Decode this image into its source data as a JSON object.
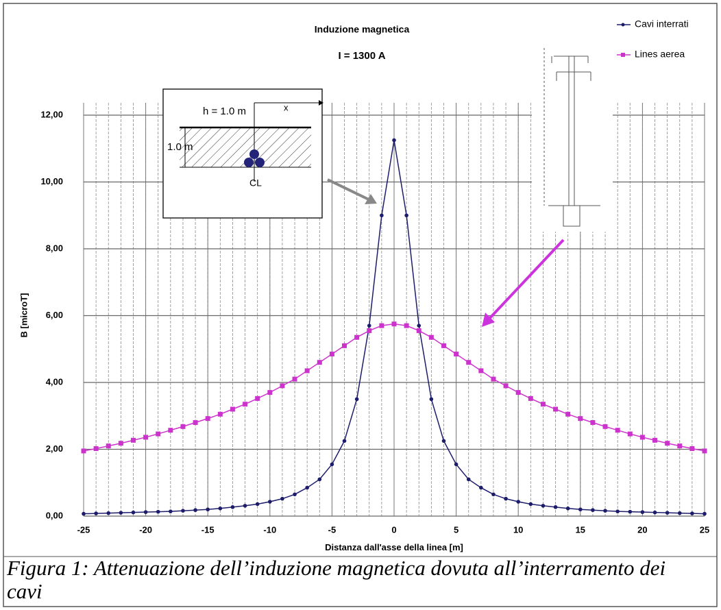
{
  "chart_data": {
    "type": "line",
    "title": "Induzione magnetica",
    "subtitle": "I = 1300 A",
    "ylabel": "B [microT]",
    "xlabel": "Distanza dall'asse della linea [m]",
    "x": [
      -25,
      -24,
      -23,
      -22,
      -21,
      -20,
      -19,
      -18,
      -17,
      -16,
      -15,
      -14,
      -13,
      -12,
      -11,
      -10,
      -9,
      -8,
      -7,
      -6,
      -5,
      -4,
      -3,
      -2,
      -1,
      0,
      1,
      2,
      3,
      4,
      5,
      6,
      7,
      8,
      9,
      10,
      11,
      12,
      13,
      14,
      15,
      16,
      17,
      18,
      19,
      20,
      21,
      22,
      23,
      24,
      25
    ],
    "series": [
      {
        "name": "Cavi interrati",
        "color": "#1c1c6b",
        "marker": "circle",
        "values": [
          0.07,
          0.08,
          0.09,
          0.1,
          0.11,
          0.12,
          0.13,
          0.14,
          0.16,
          0.18,
          0.2,
          0.23,
          0.27,
          0.31,
          0.36,
          0.43,
          0.52,
          0.65,
          0.85,
          1.1,
          1.55,
          2.25,
          3.5,
          5.7,
          9.0,
          11.25,
          9.0,
          5.7,
          3.5,
          2.25,
          1.55,
          1.1,
          0.85,
          0.65,
          0.52,
          0.43,
          0.36,
          0.31,
          0.27,
          0.23,
          0.2,
          0.18,
          0.16,
          0.14,
          0.13,
          0.12,
          0.11,
          0.1,
          0.09,
          0.08,
          0.07
        ]
      },
      {
        "name": "Lines aerea",
        "color": "#cc33cc",
        "marker": "square",
        "values": [
          1.95,
          2.02,
          2.1,
          2.18,
          2.27,
          2.36,
          2.46,
          2.57,
          2.68,
          2.8,
          2.92,
          3.05,
          3.2,
          3.35,
          3.52,
          3.7,
          3.9,
          4.1,
          4.35,
          4.6,
          4.85,
          5.1,
          5.35,
          5.55,
          5.7,
          5.75,
          5.7,
          5.55,
          5.35,
          5.1,
          4.85,
          4.6,
          4.35,
          4.1,
          3.9,
          3.7,
          3.52,
          3.35,
          3.2,
          3.05,
          2.92,
          2.8,
          2.68,
          2.57,
          2.46,
          2.36,
          2.27,
          2.18,
          2.1,
          2.02,
          1.95
        ]
      }
    ],
    "xlim": [
      -25,
      25
    ],
    "xticks": [
      -25,
      -20,
      -15,
      -10,
      -5,
      0,
      5,
      10,
      15,
      20,
      25
    ],
    "ylim": [
      0,
      12
    ],
    "yticks": [
      {
        "value": 0,
        "label": "0,00"
      },
      {
        "value": 2,
        "label": "2,00"
      },
      {
        "value": 4,
        "label": "4,00"
      },
      {
        "value": 6,
        "label": "6,00"
      },
      {
        "value": 8,
        "label": "8,00"
      },
      {
        "value": 10,
        "label": "10,00"
      },
      {
        "value": 12,
        "label": "12,00"
      }
    ],
    "grid": true,
    "inset_labels": {
      "depth": "h = 1.0 m",
      "axis": "x",
      "height": "1.0 m",
      "centerline": "CL"
    },
    "caption": "Figura 1: Attenuazione dell’induzione magnetica dovuta all’interramento dei cavi"
  }
}
